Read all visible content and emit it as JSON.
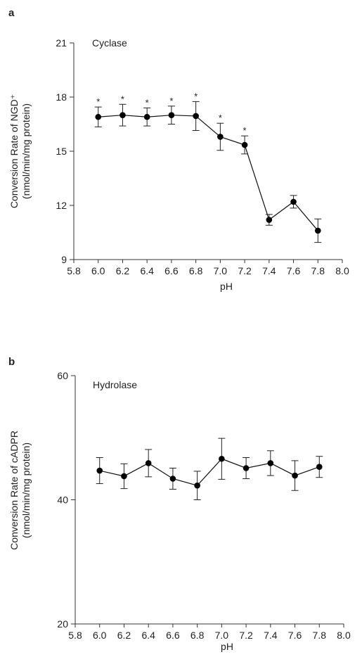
{
  "figure": {
    "panels": [
      {
        "letter": "a",
        "title": "Cyclase"
      },
      {
        "letter": "b",
        "title": "Hydrolase"
      }
    ]
  },
  "chart_data": [
    {
      "type": "line",
      "panel": "a",
      "title": "Cyclase",
      "xlabel": "pH",
      "ylabel": [
        "Conversion Rate of NGD⁺",
        "(nmol/min/mg protein)"
      ],
      "xlim": [
        5.8,
        8.0
      ],
      "ylim": [
        9,
        21
      ],
      "xticks": [
        "5.8",
        "6.0",
        "6.2",
        "6.4",
        "6.6",
        "6.8",
        "7.0",
        "7.2",
        "7.4",
        "7.6",
        "7.8",
        "8.0"
      ],
      "yticks": [
        "9",
        "12",
        "15",
        "18",
        "21"
      ],
      "grid": false,
      "series": [
        {
          "x": [
            6.0,
            6.2,
            6.4,
            6.6,
            6.8,
            7.0,
            7.2,
            7.4,
            7.6,
            7.8
          ],
          "y": [
            16.9,
            17.0,
            16.9,
            17.0,
            16.95,
            15.8,
            15.35,
            11.2,
            12.2,
            10.6
          ],
          "error": [
            0.55,
            0.6,
            0.5,
            0.5,
            0.8,
            0.75,
            0.5,
            0.3,
            0.35,
            0.65
          ],
          "significance": [
            "*",
            "*",
            "*",
            "*",
            "*",
            "*",
            "*",
            "",
            "",
            ""
          ]
        }
      ]
    },
    {
      "type": "line",
      "panel": "b",
      "title": "Hydrolase",
      "xlabel": "pH",
      "ylabel": [
        "Conversion Rate of cADPR",
        "(nmol/min/mg protein)"
      ],
      "xlim": [
        5.8,
        8.0
      ],
      "ylim": [
        20,
        60
      ],
      "xticks": [
        "5.8",
        "6.0",
        "6.2",
        "6.4",
        "6.6",
        "6.8",
        "7.0",
        "7.2",
        "7.4",
        "7.6",
        "7.8",
        "8.0"
      ],
      "yticks": [
        "20",
        "40",
        "60"
      ],
      "grid": false,
      "series": [
        {
          "x": [
            6.0,
            6.2,
            6.4,
            6.6,
            6.8,
            7.0,
            7.2,
            7.4,
            7.6,
            7.8
          ],
          "y": [
            44.7,
            43.8,
            45.9,
            43.4,
            42.3,
            46.6,
            45.1,
            45.9,
            43.9,
            45.3
          ],
          "error": [
            2.1,
            2.0,
            2.2,
            1.7,
            2.3,
            3.3,
            1.7,
            2.0,
            2.4,
            1.7
          ],
          "significance": [
            "",
            "",
            "",
            "",
            "",
            "",
            "",
            "",
            "",
            ""
          ]
        }
      ]
    }
  ]
}
